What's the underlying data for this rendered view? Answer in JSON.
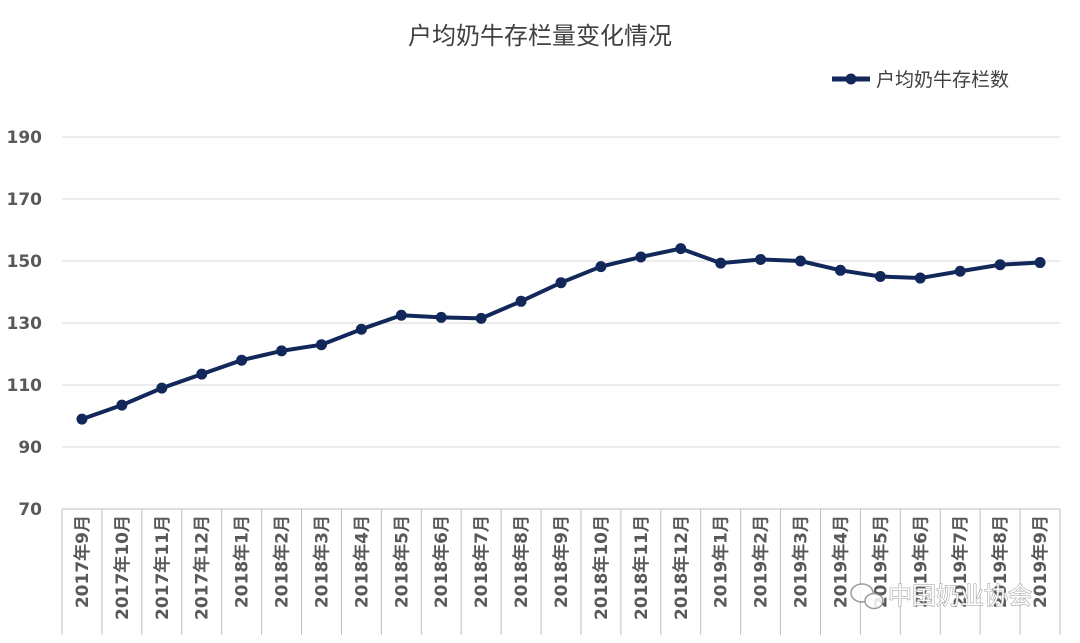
{
  "watermark": {
    "text": "中国奶业协会",
    "icon": "wechat-icon"
  },
  "chart_data": {
    "type": "line",
    "title": "户均奶牛存栏量变化情况",
    "xlabel": "",
    "ylabel": "",
    "legend_position": "top-right",
    "grid": true,
    "ylim": [
      70,
      190
    ],
    "yticks": [
      70,
      90,
      110,
      130,
      150,
      170,
      190
    ],
    "categories": [
      "2017年9月",
      "2017年10月",
      "2017年11月",
      "2017年12月",
      "2018年1月",
      "2018年2月",
      "2018年3月",
      "2018年4月",
      "2018年5月",
      "2018年6月",
      "2018年7月",
      "2018年8月",
      "2018年9月",
      "2018年10月",
      "2018年11月",
      "2018年12月",
      "2019年1月",
      "2019年2月",
      "2019年3月",
      "2019年4月",
      "2019年5月",
      "2019年6月",
      "2019年7月",
      "2019年8月",
      "2019年9月"
    ],
    "series": [
      {
        "name": "户均奶牛存栏数",
        "color": "#13285a",
        "values": [
          99.0,
          103.5,
          109.0,
          113.5,
          118.0,
          121.0,
          123.0,
          128.0,
          132.5,
          131.8,
          131.5,
          137.0,
          143.0,
          148.2,
          151.3,
          154.0,
          149.3,
          150.5,
          150.0,
          147.0,
          145.0,
          144.5,
          146.7,
          148.8,
          149.5
        ]
      }
    ]
  }
}
